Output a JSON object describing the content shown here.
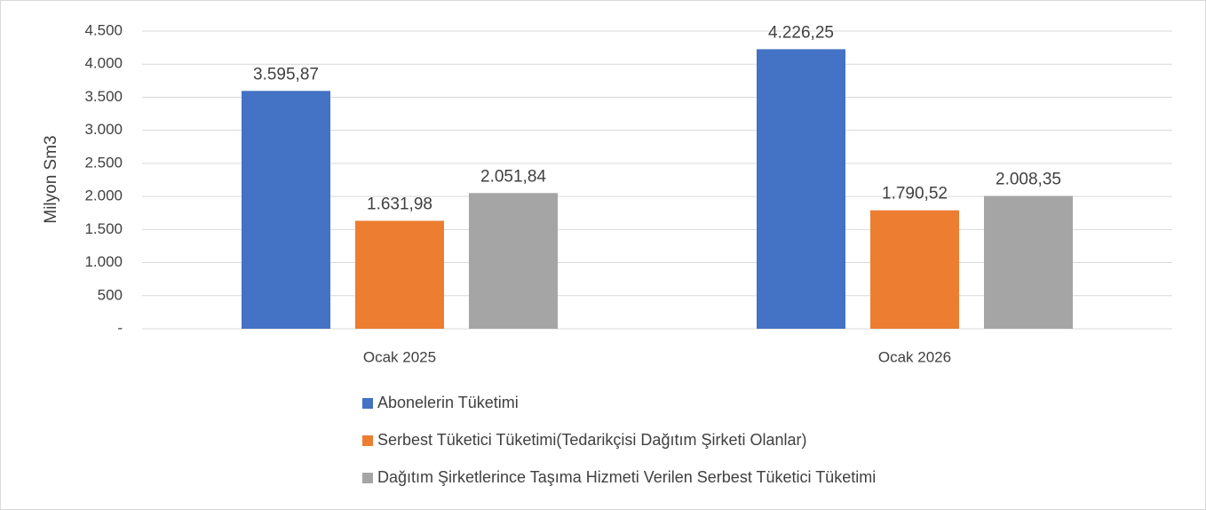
{
  "chart_data": {
    "type": "bar",
    "y_label": "Milyon Sm3",
    "categories": [
      "Ocak 2025",
      "Ocak 2026"
    ],
    "series": [
      {
        "name": "Abonelerin Tüketimi",
        "color": "#4472c4",
        "values": [
          3595.87,
          4226.25
        ],
        "value_labels": [
          "3.595,87",
          "4.226,25"
        ]
      },
      {
        "name": "Serbest Tüketici Tüketimi(Tedarikçisi Dağıtım Şirketi Olanlar)",
        "color": "#ed7d31",
        "values": [
          1631.98,
          1790.52
        ],
        "value_labels": [
          "1.631,98",
          "1.790,52"
        ]
      },
      {
        "name": "Dağıtım Şirketlerince Taşıma Hizmeti Verilen Serbest Tüketici Tüketimi",
        "color": "#a5a5a5",
        "values": [
          2051.84,
          2008.35
        ],
        "value_labels": [
          "2.051,84",
          "2.008,35"
        ]
      }
    ],
    "ylim": [
      0,
      4500
    ],
    "yticks": [
      {
        "value": 0,
        "label": "-"
      },
      500,
      {
        "value": 1000,
        "label": "1.000"
      },
      {
        "value": 1500,
        "label": "1.500"
      },
      {
        "value": 2000,
        "label": "2.000"
      },
      {
        "value": 2500,
        "label": "2.500"
      },
      {
        "value": 3000,
        "label": "3.000"
      },
      {
        "value": 3500,
        "label": "3.500"
      },
      {
        "value": 4000,
        "label": "4.000"
      },
      {
        "value": 4500,
        "label": "4.500"
      }
    ],
    "grid": true,
    "legend": "bottom"
  }
}
